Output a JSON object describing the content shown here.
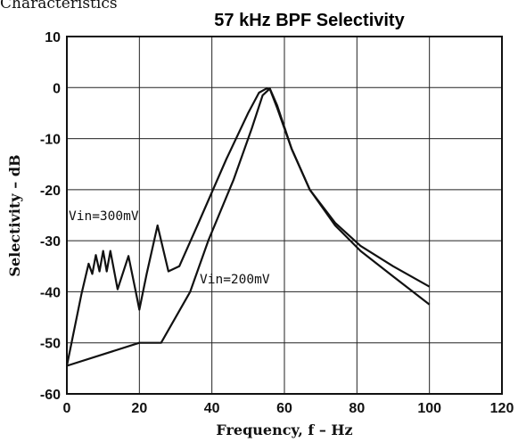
{
  "page": {
    "header": "Characteristics"
  },
  "chart_data": {
    "type": "line",
    "title": "57 kHz BPF Selectivity",
    "xlabel": "Frequency, f – Hz",
    "ylabel": "Selectivity – dB",
    "xlim": [
      0,
      120
    ],
    "ylim": [
      -60,
      10
    ],
    "x_ticks": [
      "0",
      "20",
      "40",
      "60",
      "80",
      "100",
      "120"
    ],
    "y_ticks": [
      "10",
      "0",
      "-10",
      "-20",
      "-30",
      "-40",
      "-50",
      "-60"
    ],
    "grid": true,
    "series": [
      {
        "name": "Vin=300mV",
        "x": [
          0,
          4,
          6,
          7,
          8,
          9,
          10,
          11,
          12,
          14,
          17,
          19,
          20,
          22,
          25,
          28,
          31,
          36,
          44,
          50,
          53,
          55,
          56,
          58,
          62,
          67,
          74,
          81,
          90,
          100
        ],
        "y": [
          -54.5,
          -40.5,
          -34.5,
          -36.5,
          -32.8,
          -36,
          -32,
          -36,
          -32,
          -39.5,
          -33,
          -40,
          -43.5,
          -36.5,
          -27,
          -36,
          -35,
          -27,
          -14,
          -5,
          -1,
          -0.2,
          -0.3,
          -4,
          -12,
          -20,
          -26.5,
          -31,
          -35,
          -39
        ]
      },
      {
        "name": "Vin=200mV",
        "x": [
          0,
          20,
          26,
          34,
          39,
          46,
          51,
          54,
          56,
          58,
          62,
          67,
          74,
          81,
          90,
          100
        ],
        "y": [
          -54.5,
          -50,
          -50,
          -40,
          -30,
          -18,
          -8,
          -1.5,
          -0.2,
          -3.5,
          -12,
          -20,
          -27,
          -32,
          -37,
          -42.5
        ]
      }
    ],
    "annotations": [
      "Vin=300mV",
      "Vin=200mV"
    ]
  }
}
